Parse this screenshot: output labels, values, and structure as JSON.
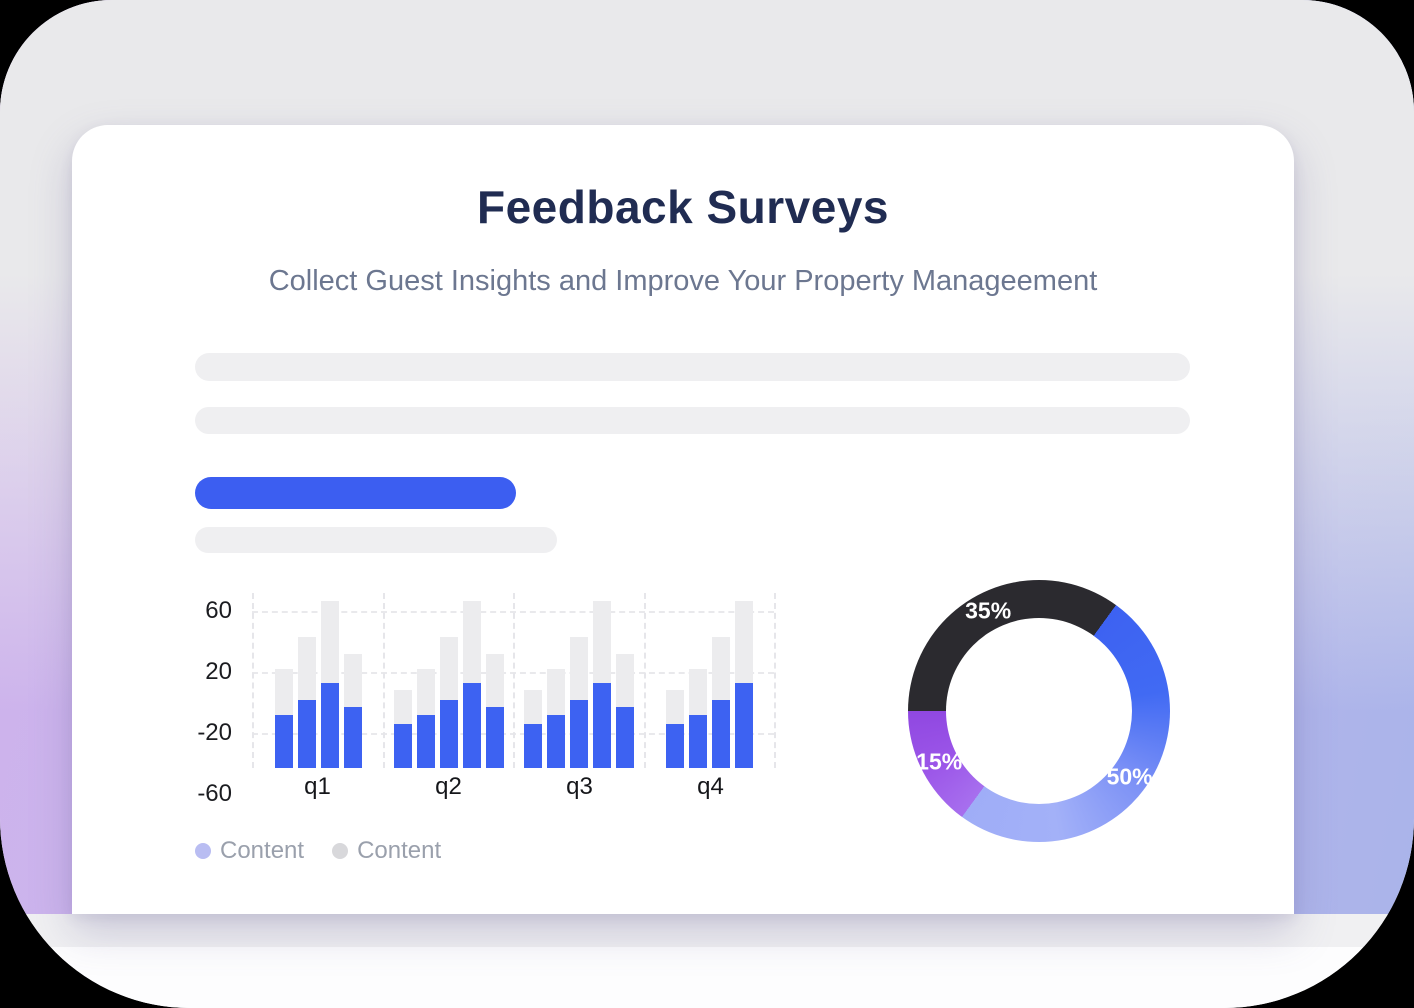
{
  "header": {
    "title": "Feedback Surveys",
    "subtitle": "Collect Guest Insights and Improve Your Property Manageement"
  },
  "colors": {
    "cta_blue": "#3c5ef1",
    "skeleton_gray": "#efeff1",
    "title_navy": "#202c52",
    "subtitle_gray": "#6c7790"
  },
  "legend": {
    "items": [
      {
        "label": "Content",
        "color": "#b9bdf2"
      },
      {
        "label": "Content",
        "color": "#d8d8db"
      }
    ]
  },
  "chart_data": [
    {
      "type": "bar",
      "title": "Quarterly survey results (placeholder content)",
      "categories": [
        "q1",
        "q2",
        "q3",
        "q4"
      ],
      "yticks": [
        {
          "value": 60,
          "label": "60"
        },
        {
          "value": 20,
          "label": "20"
        },
        {
          "value": -20,
          "label": "-20"
        },
        {
          "value": -60,
          "label": "-60"
        }
      ],
      "ylim": [
        -43,
        72
      ],
      "baseline": -43,
      "grid": "dashed",
      "legend_position": "bottom-left",
      "series": [
        {
          "name": "Content",
          "role": "background",
          "color": "#ececee",
          "values_by_group": [
            [
              22,
              43,
              67,
              32
            ],
            [
              8,
              22,
              43,
              67,
              32
            ],
            [
              8,
              22,
              43,
              67,
              32
            ],
            [
              8,
              22,
              43,
              67
            ]
          ]
        },
        {
          "name": "Content",
          "role": "foreground",
          "color": "#3d62f2",
          "values_by_group": [
            [
              -8,
              2,
              13,
              -3
            ],
            [
              -14,
              -8,
              2,
              13,
              -3
            ],
            [
              -14,
              -8,
              2,
              13,
              -3
            ],
            [
              -14,
              -8,
              2,
              13
            ]
          ]
        }
      ]
    },
    {
      "type": "pie",
      "donut": true,
      "start_angle_deg": 270,
      "label_color": "#ffffff",
      "label_radius": 112,
      "slices": [
        {
          "label": "35%",
          "value": 35,
          "colors": [
            "#2b2a2f"
          ]
        },
        {
          "label": "50%",
          "value": 50,
          "colors": [
            "#3d62f2",
            "#416af3",
            "#7c91f6",
            "#a3b1f8",
            "#9fadf7"
          ]
        },
        {
          "label": "15%",
          "value": 15,
          "colors": [
            "#a76fee",
            "#9b55e8",
            "#9048e1"
          ]
        }
      ]
    }
  ]
}
